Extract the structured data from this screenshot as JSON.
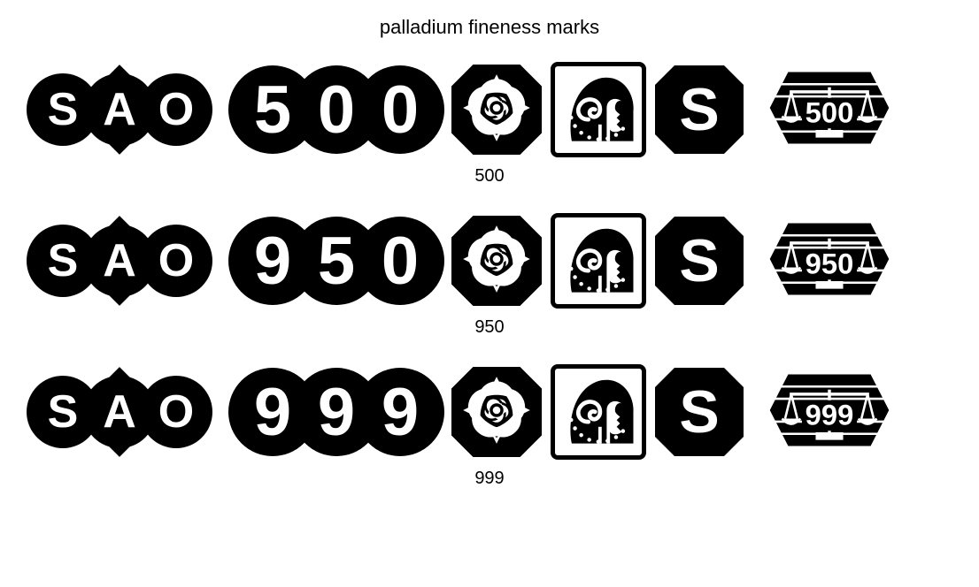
{
  "title": "palladium fineness marks",
  "colors": {
    "ink": "#000000",
    "paper": "#ffffff"
  },
  "sponsor_mark_letters": [
    "S",
    "A",
    "O"
  ],
  "date_letter": "S",
  "rows": [
    {
      "fineness_digits": [
        "5",
        "0",
        "0"
      ],
      "convention_number": "500",
      "caption": "500"
    },
    {
      "fineness_digits": [
        "9",
        "5",
        "0"
      ],
      "convention_number": "950",
      "caption": "950"
    },
    {
      "fineness_digits": [
        "9",
        "9",
        "9"
      ],
      "convention_number": "999",
      "caption": "999"
    }
  ],
  "marks": {
    "sponsor": {
      "type": "sponsor-trilobe",
      "description": "Three overlapping black circles with SAO in white, diamond behind centre"
    },
    "fineness": {
      "type": "fineness-trilobe",
      "description": "Three overlapping black circles each carrying one digit of the fineness"
    },
    "assay": {
      "type": "octagon-rose",
      "description": "Black octagon bearing a white Tudor rose — Sheffield assay office"
    },
    "traditional": {
      "type": "athena-head",
      "description": "Square white field, black border, Pallas Athena helmeted head — palladium indicator"
    },
    "date": {
      "type": "octagon-letter",
      "description": "Black octagon with white date letter"
    },
    "convention": {
      "type": "scales-shield",
      "description": "Elongated hexagon shield, balance scales flanking fineness number"
    }
  }
}
